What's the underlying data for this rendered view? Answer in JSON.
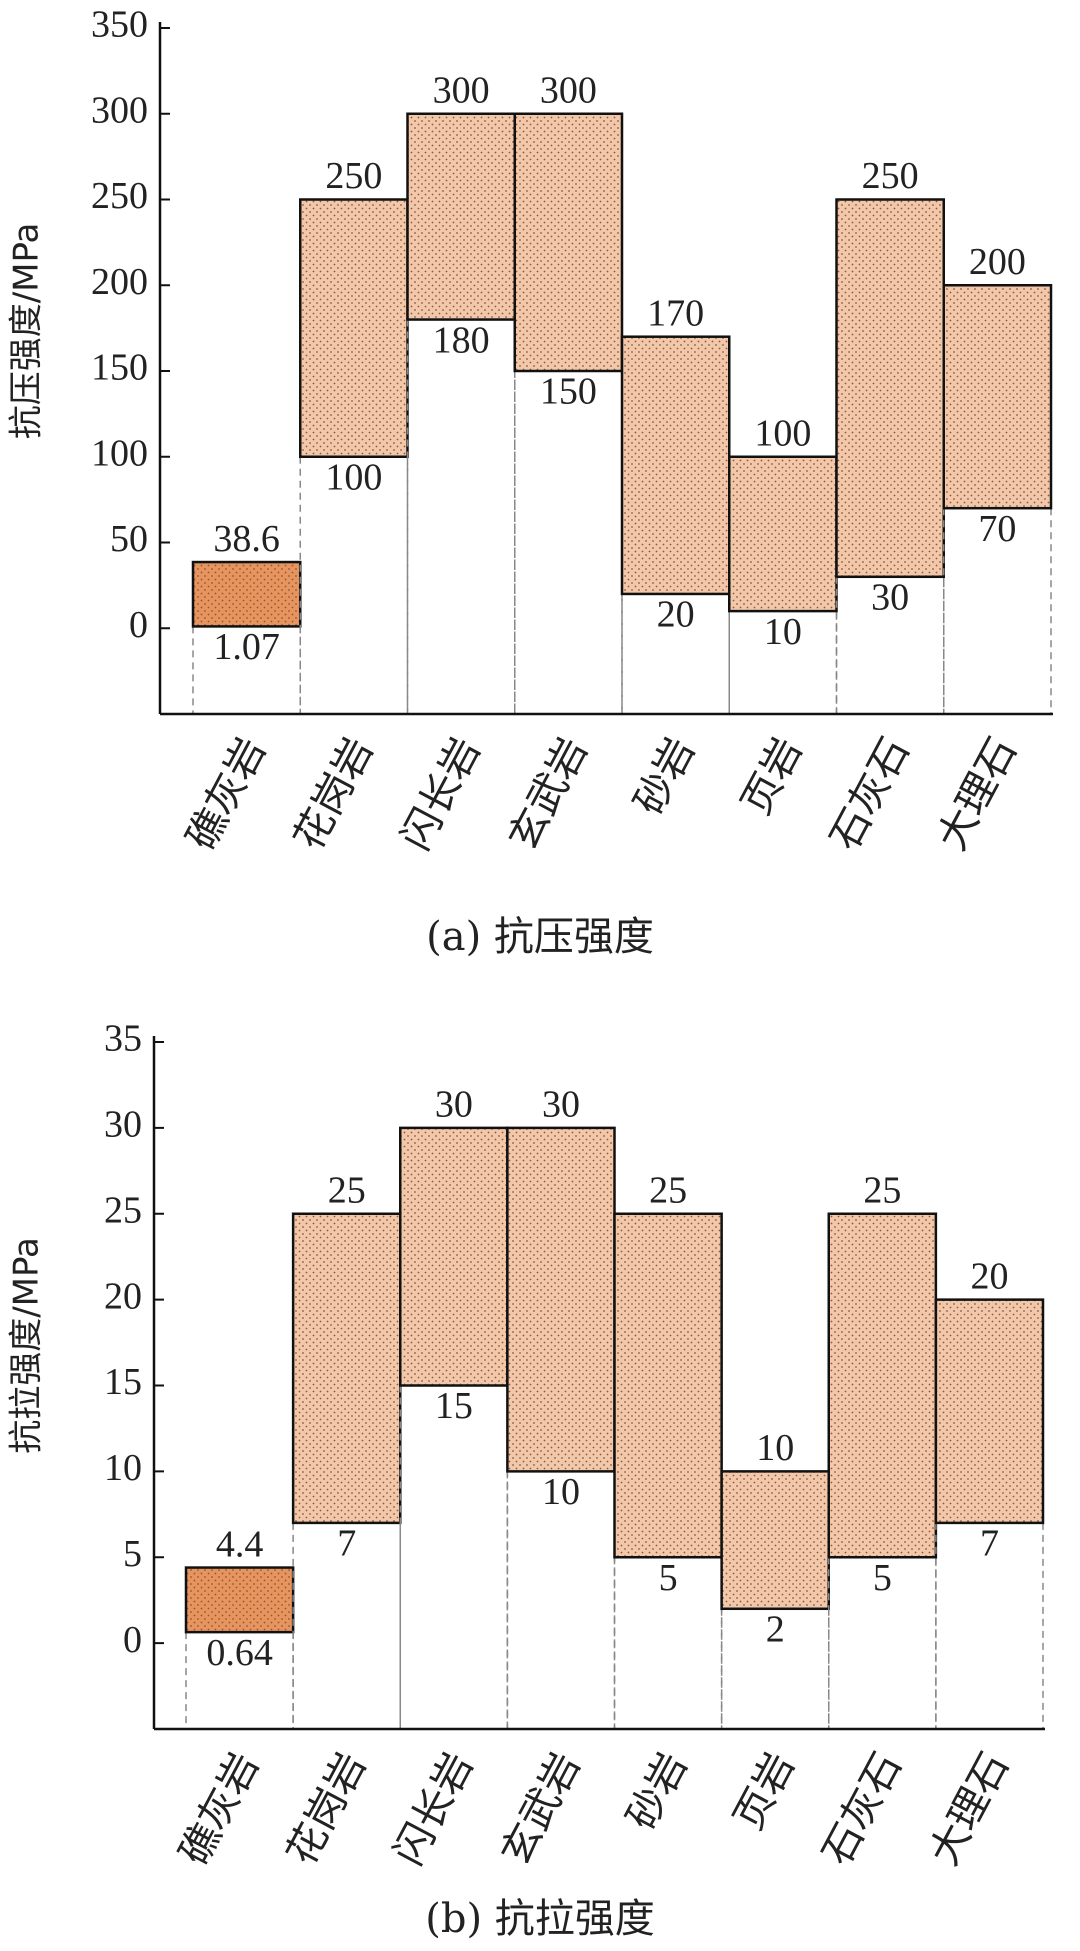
{
  "chart_data": [
    {
      "type": "range_bar",
      "title": "(a) 抗压强度",
      "y_label": "抗压强度/MPa",
      "categories": [
        "礁灰岩",
        "花岗岩",
        "闪长岩",
        "玄武岩",
        "砂岩",
        "页岩",
        "石灰石",
        "大理石"
      ],
      "low": [
        1.07,
        100,
        180,
        150,
        20,
        10,
        30,
        70
      ],
      "high": [
        38.6,
        250,
        300,
        300,
        170,
        100,
        250,
        200
      ],
      "colors": [
        "#e8945e",
        "#f3c7a9",
        "#f3c7a9",
        "#f3c7a9",
        "#f3c7a9",
        "#f3c7a9",
        "#f3c7a9",
        "#f3c7a9"
      ],
      "ylim": [
        -50,
        350
      ],
      "yticks": [
        0,
        50,
        100,
        150,
        200,
        250,
        300,
        350
      ]
    },
    {
      "type": "range_bar",
      "title": "(b) 抗拉强度",
      "y_label": "抗拉强度/MPa",
      "categories": [
        "礁灰岩",
        "花岗岩",
        "闪长岩",
        "玄武岩",
        "砂岩",
        "页岩",
        "石灰石",
        "大理石"
      ],
      "low": [
        0.64,
        7,
        15,
        10,
        5,
        2,
        5,
        7
      ],
      "high": [
        4.4,
        25,
        30,
        30,
        25,
        10,
        25,
        20
      ],
      "colors": [
        "#e8945e",
        "#f3c7a9",
        "#f3c7a9",
        "#f3c7a9",
        "#f3c7a9",
        "#f3c7a9",
        "#f3c7a9",
        "#f3c7a9"
      ],
      "ylim": [
        -5,
        35
      ],
      "yticks": [
        0,
        5,
        10,
        15,
        20,
        25,
        30,
        35
      ]
    }
  ]
}
